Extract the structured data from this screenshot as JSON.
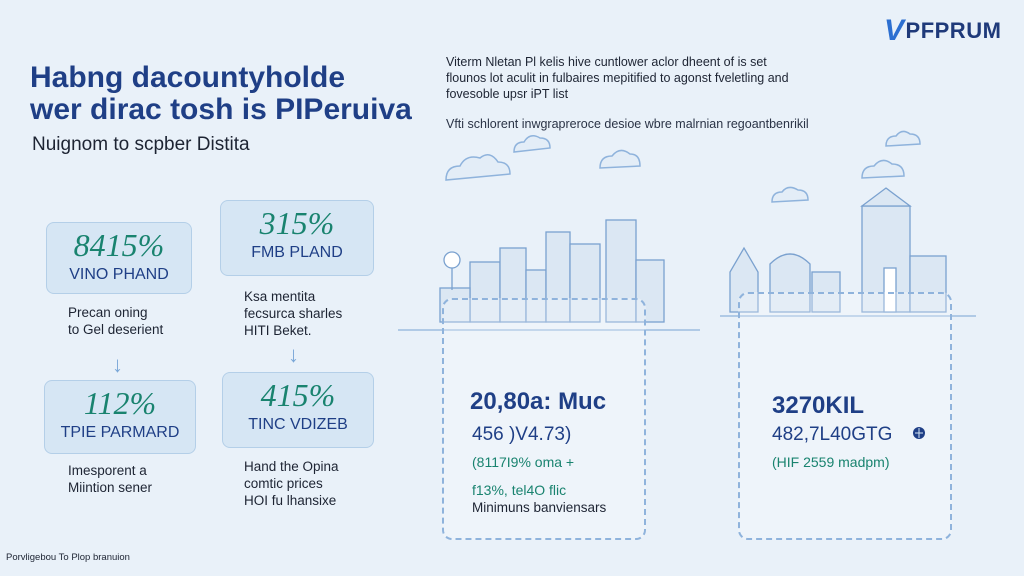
{
  "brand": {
    "logo_text": "PFPRUM",
    "logo_mark": "V"
  },
  "header": {
    "headline_line1": "Habng dacountyholde",
    "headline_line2": "wer dirac tosh is PIPeruiva",
    "subheadline": "Nuignom to scpber Distita"
  },
  "intro": {
    "paragraph": "Viterm Nletan Pl kelis hive cuntlower aclor dheent of is set flounos lot aculit in fulbaires mepitified to agonst fveletling and fovesoble upsr iPT list",
    "note": "Vfti schlorent inwgrapreroce desioe wbre malrnian regoantbenrikil"
  },
  "stats": [
    {
      "value": "8415%",
      "label": "VINO PHAND",
      "desc_line1": "Precan oning",
      "desc_line2": "to Gel deserient",
      "desc_line3": ""
    },
    {
      "value": "315%",
      "label": "FMB PLAND",
      "desc_line1": "Ksa mentita",
      "desc_line2": "fecsurca sharles",
      "desc_line3": "HITI Beket."
    },
    {
      "value": "112%",
      "label": "TPIE PARMARD",
      "desc_line1": "Imesporent a",
      "desc_line2": "Miintion sener",
      "desc_line3": ""
    },
    {
      "value": "415%",
      "label": "TINC VDIZEB",
      "desc_line1": "Hand the Opina",
      "desc_line2": "comtic prices",
      "desc_line3": "HOI fu lhansixe"
    }
  ],
  "panels": [
    {
      "main": "20,80a: Muc",
      "sub": "456 )V4.73)",
      "green": "(8117I9% oma +",
      "green2": "f13%, tel4O flic",
      "small": "Minimuns banviensars"
    },
    {
      "main": "3270KIL",
      "sub": "482,7L40GTG",
      "green": "(HIF 2559 madpm)",
      "green2": "",
      "small": ""
    }
  ],
  "footer": {
    "text": "Porvligebou To Plop branuion"
  },
  "colors": {
    "background": "#e9f1f9",
    "accent_blue": "#1f3f86",
    "accent_green": "#19836f",
    "box_fill": "#d6e6f4"
  }
}
